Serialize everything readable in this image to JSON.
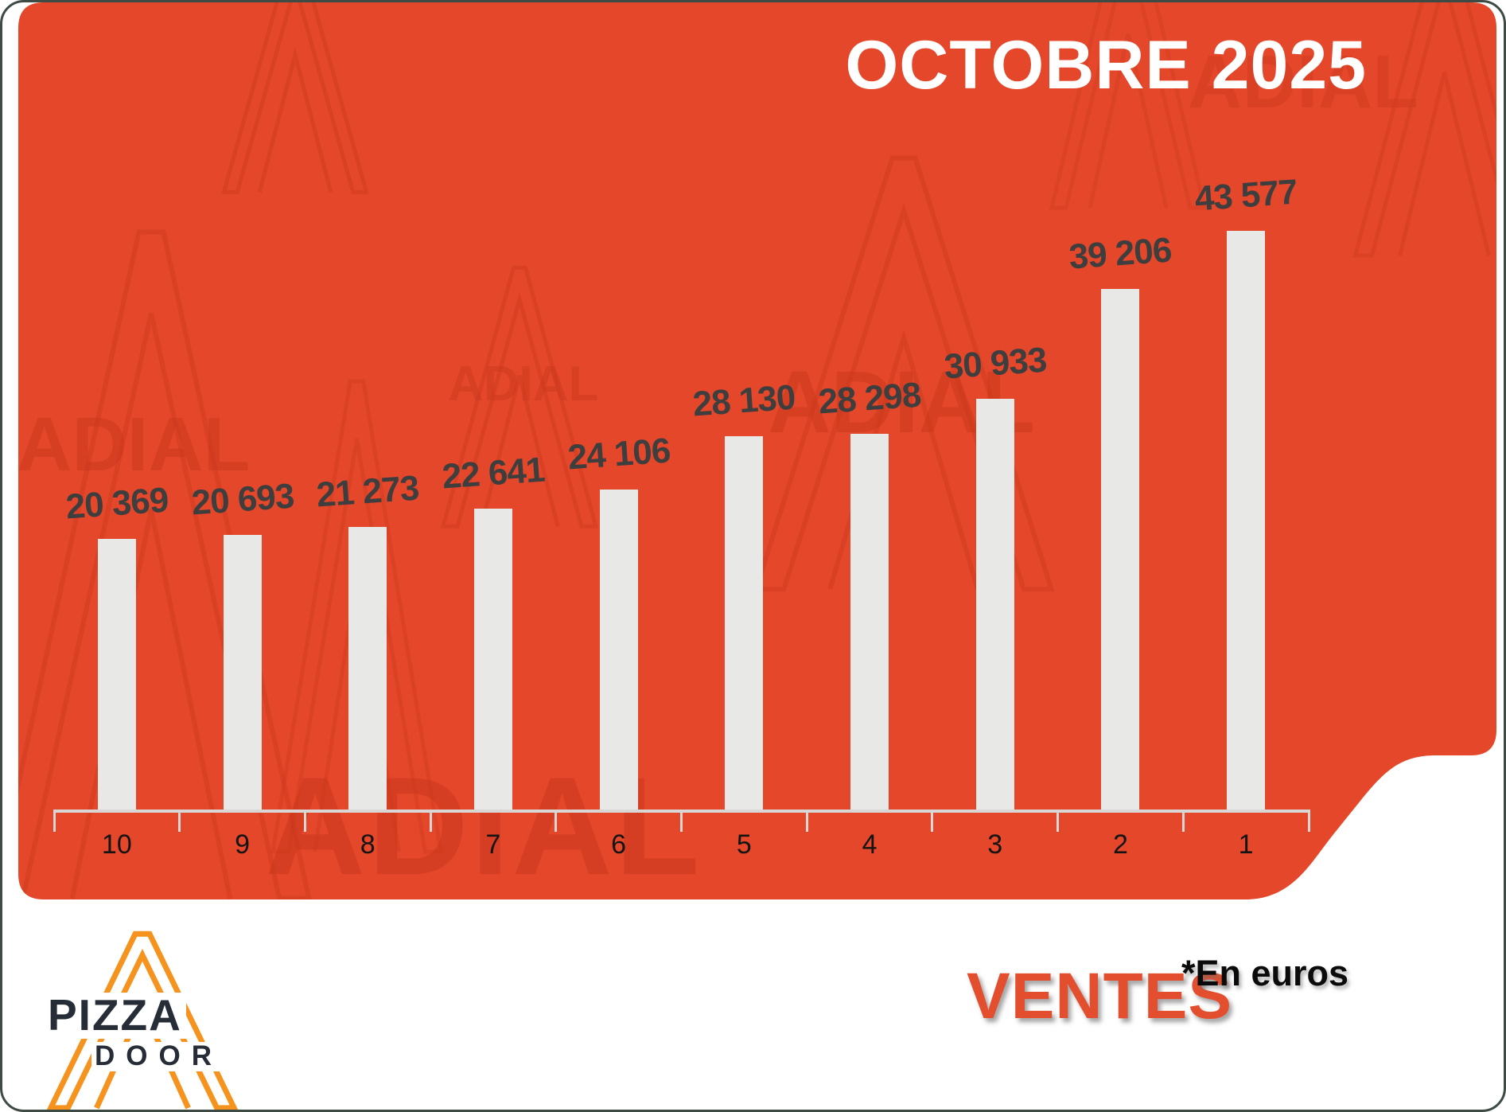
{
  "title": "OCTOBRE 2025",
  "watermark": {
    "text": "ADIAL",
    "letter": "A"
  },
  "footer": {
    "ventes_label": "VENTES",
    "unit_note": "*En euros",
    "logo": {
      "brand_top": "PIZZA",
      "brand_bottom": "DOOR",
      "letter": "A"
    }
  },
  "colors": {
    "panel_orange": "#E4472A",
    "watermark_red": "#C8371B",
    "bar_fill": "#E8E8E7",
    "axis_gray": "#D8D7D5",
    "value_label_gray": "#3E3E3E",
    "title_white": "#FFFFFF",
    "ventes_orange": "#E34F2E",
    "logo_orange": "#F6921E",
    "logo_dark": "#262D37",
    "card_border": "#3E4B44"
  },
  "chart_data": {
    "type": "bar",
    "title": "OCTOBRE 2025",
    "categories": [
      "10",
      "9",
      "8",
      "7",
      "6",
      "5",
      "4",
      "3",
      "2",
      "1"
    ],
    "values": [
      20369,
      20693,
      21273,
      22641,
      24106,
      28130,
      28298,
      30933,
      39206,
      43577
    ],
    "value_labels": [
      "20 369",
      "20 693",
      "21 273",
      "22 641",
      "24 106",
      "28 130",
      "28 298",
      "30 933",
      "39 206",
      "43 577"
    ],
    "series_name": "Ventes (*En euros)",
    "xlabel": "",
    "ylabel": "",
    "ylim": [
      0,
      45000
    ],
    "grid": false,
    "legend": false,
    "orientation": "vertical",
    "bar_color": "#E8E8E7",
    "background_color": "#E4472A"
  }
}
